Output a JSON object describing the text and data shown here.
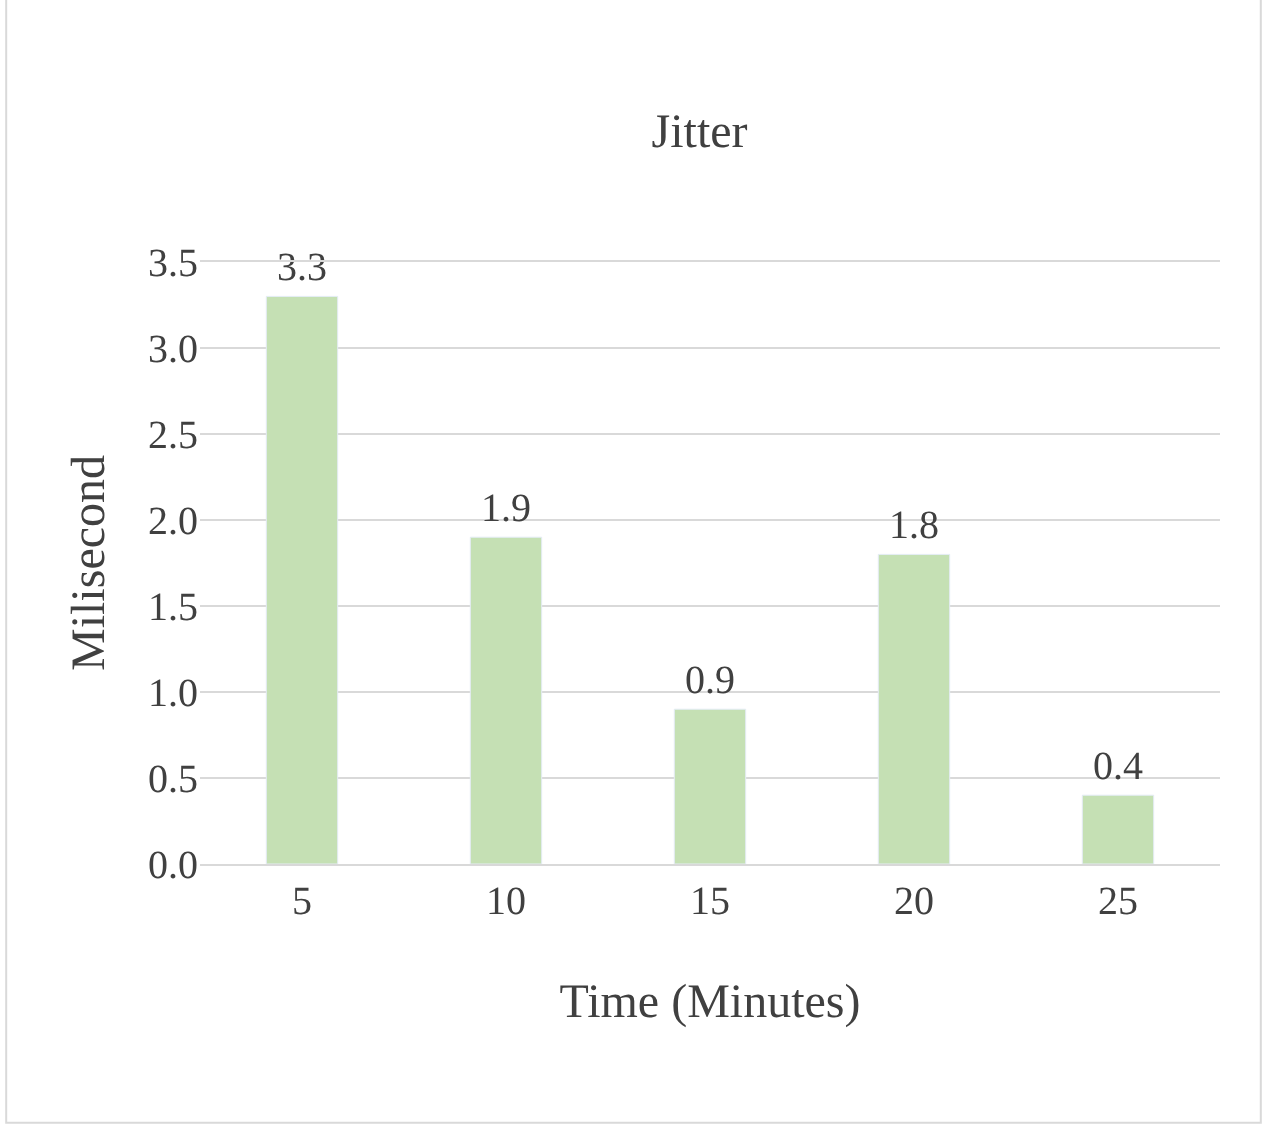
{
  "chart_data": {
    "type": "bar",
    "title": "Jitter",
    "xlabel": "Time (Minutes)",
    "ylabel": "Milisecond",
    "categories": [
      "5",
      "10",
      "15",
      "20",
      "25"
    ],
    "values": [
      3.3,
      1.9,
      0.9,
      1.8,
      0.4
    ],
    "color": "#c5e0b4",
    "ylim": [
      0,
      3.5
    ],
    "yticks": [
      {
        "value": 0,
        "label": "0.0"
      },
      {
        "value": 0.5,
        "label": "0.5"
      },
      {
        "value": 1,
        "label": "1.0"
      },
      {
        "value": 1.5,
        "label": "1.5"
      },
      {
        "value": 2,
        "label": "2.0"
      },
      {
        "value": 2.5,
        "label": "2.5"
      },
      {
        "value": 3,
        "label": "3.0"
      },
      {
        "value": 3.5,
        "label": "3.5"
      }
    ],
    "grid": "y",
    "data_labels": true
  }
}
